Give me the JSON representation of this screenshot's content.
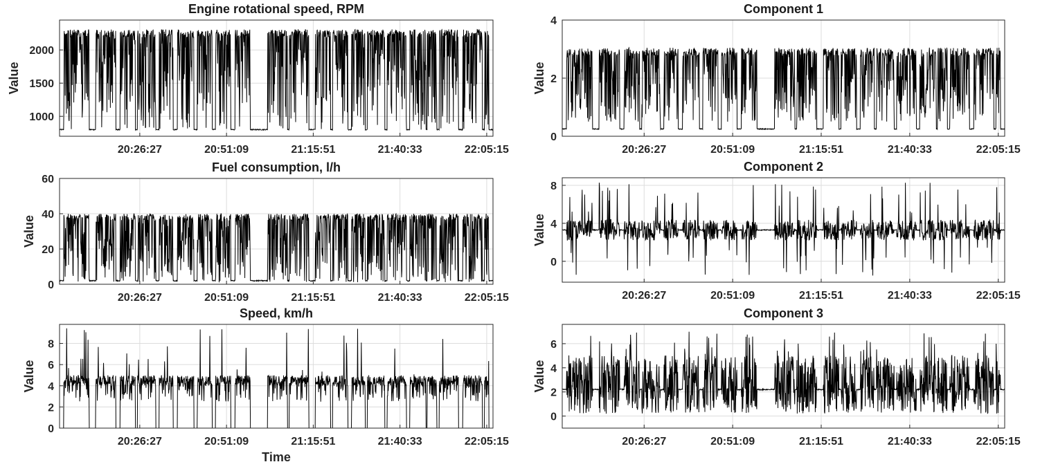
{
  "chart_data": [
    {
      "type": "line",
      "title": "Engine rotational speed, RPM",
      "ylabel": "Value",
      "xlabel": "",
      "x_ticks": [
        "20:26:27",
        "20:51:09",
        "21:15:51",
        "21:40:33",
        "22:05:15"
      ],
      "y_ticks": [
        "1000",
        "1500",
        "2000"
      ],
      "ylim": [
        700,
        2450
      ],
      "grid": true,
      "series": [
        {
          "values": []
        }
      ],
      "baseline": 800,
      "high": 2250,
      "segments": "ten active bursts between ~780 and ~2300 separated by idle at ~800; long idle gap near 21:05–21:18"
    },
    {
      "type": "line",
      "title": "Fuel consumption, l/h",
      "ylabel": "Value",
      "xlabel": "",
      "x_ticks": [
        "20:26:27",
        "20:51:09",
        "21:15:51",
        "21:40:33",
        "22:05:15"
      ],
      "y_ticks": [
        "0",
        "20",
        "40",
        "60"
      ],
      "ylim": [
        0,
        60
      ],
      "grid": true,
      "series": [
        {
          "values": []
        }
      ],
      "baseline": 2,
      "high": 38
    },
    {
      "type": "line",
      "title": "Speed, km/h",
      "ylabel": "Value",
      "xlabel": "Time",
      "x_ticks": [
        "20:26:27",
        "20:51:09",
        "21:15:51",
        "21:40:33",
        "22:05:15"
      ],
      "y_ticks": [
        "0",
        "2",
        "4",
        "6",
        "8"
      ],
      "ylim": [
        0,
        9.8
      ],
      "grid": true,
      "series": [
        {
          "values": []
        }
      ],
      "baseline": 0,
      "high": 5
    },
    {
      "type": "line",
      "title": "Component 1",
      "ylabel": "Value",
      "xlabel": "",
      "x_ticks": [
        "20:26:27",
        "20:51:09",
        "21:15:51",
        "21:40:33",
        "22:05:15"
      ],
      "y_ticks": [
        "0",
        "2",
        "4"
      ],
      "ylim": [
        0,
        4
      ],
      "grid": true,
      "series": [
        {
          "values": []
        }
      ],
      "baseline": 0.25,
      "high": 3
    },
    {
      "type": "line",
      "title": "Component 2",
      "ylabel": "Value",
      "xlabel": "",
      "x_ticks": [
        "20:26:27",
        "20:51:09",
        "21:15:51",
        "21:40:33",
        "22:05:15"
      ],
      "y_ticks": [
        "0",
        "4",
        "8"
      ],
      "ylim": [
        -2.2,
        8.8
      ],
      "grid": true,
      "series": [
        {
          "values": []
        }
      ],
      "baseline": 3.3,
      "high": 8.3,
      "low": -1.8
    },
    {
      "type": "line",
      "title": "Component 3",
      "ylabel": "Value",
      "xlabel": "",
      "x_ticks": [
        "20:26:27",
        "20:51:09",
        "21:15:51",
        "21:40:33",
        "22:05:15"
      ],
      "y_ticks": [
        "0",
        "2",
        "4",
        "6"
      ],
      "ylim": [
        -1,
        7.6
      ],
      "grid": true,
      "series": [
        {
          "values": []
        }
      ],
      "baseline": 2.2,
      "high": 7,
      "low": 0
    }
  ]
}
